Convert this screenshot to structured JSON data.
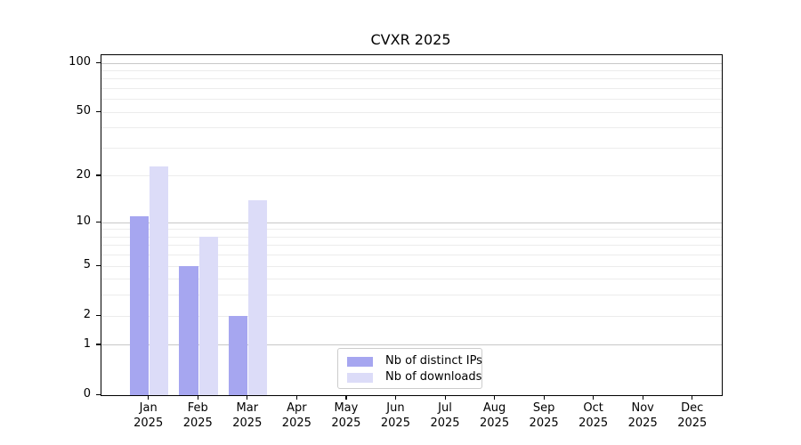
{
  "figure": {
    "title": "CVXR 2025"
  },
  "chart_data": {
    "type": "bar",
    "title": "CVXR 2025",
    "categories": [
      "Jan",
      "Feb",
      "Mar",
      "Apr",
      "May",
      "Jun",
      "Jul",
      "Aug",
      "Sep",
      "Oct",
      "Nov",
      "Dec"
    ],
    "x_year_label": "2025",
    "series": [
      {
        "name": "Nb of distinct IPs",
        "color": "#a6a6f0",
        "values": [
          11,
          5,
          2,
          0,
          0,
          0,
          0,
          0,
          0,
          0,
          0,
          0
        ]
      },
      {
        "name": "Nb of downloads",
        "color": "#dcdcf8",
        "values": [
          23,
          8,
          14,
          0,
          0,
          0,
          0,
          0,
          0,
          0,
          0,
          0
        ]
      }
    ],
    "yscale": "log1p",
    "ylim": [
      0,
      112
    ],
    "y_tick_labels": [
      0,
      1,
      2,
      5,
      10,
      20,
      50,
      100
    ],
    "y_major_gridlines": [
      1,
      10,
      100
    ],
    "y_minor_gridlines": [
      2,
      3,
      4,
      5,
      6,
      7,
      8,
      9,
      20,
      30,
      40,
      50,
      60,
      70,
      80,
      90
    ],
    "grid": true,
    "legend_position": "lower center",
    "colors": {
      "bar_distinct_ips": "#a6a6f0",
      "bar_downloads": "#dcdcf8",
      "major_grid": "#c8c8c8",
      "minor_grid": "#ececec",
      "axis": "#000000",
      "text": "#000000",
      "legend_border": "#cccccc"
    }
  }
}
